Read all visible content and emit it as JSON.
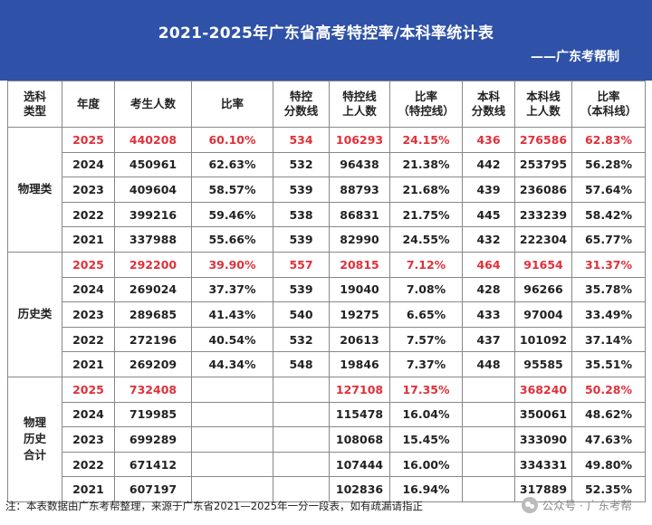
{
  "header": {
    "title": "2021-2025年广东省高考特控率/本科率统计表",
    "byline": "——广东考帮制"
  },
  "columns": [
    "选科\n类型",
    "年度",
    "考生人数",
    "比率",
    "特控\n分数线",
    "特控线\n上人数",
    "比率\n（特控线）",
    "本科\n分数线",
    "本科线\n上人数",
    "比率\n（本科线）"
  ],
  "groups": [
    {
      "label": "物理类",
      "rows": [
        [
          "2025",
          "440208",
          "60.10%",
          "534",
          "106293",
          "24.15%",
          "436",
          "276586",
          "62.83%"
        ],
        [
          "2024",
          "450961",
          "62.63%",
          "532",
          "96438",
          "21.38%",
          "442",
          "253795",
          "56.28%"
        ],
        [
          "2023",
          "409604",
          "58.57%",
          "539",
          "88793",
          "21.68%",
          "439",
          "236086",
          "57.64%"
        ],
        [
          "2022",
          "399216",
          "59.46%",
          "538",
          "86831",
          "21.75%",
          "445",
          "233239",
          "58.42%"
        ],
        [
          "2021",
          "337988",
          "55.66%",
          "539",
          "82990",
          "24.55%",
          "432",
          "222304",
          "65.77%"
        ]
      ]
    },
    {
      "label": "历史类",
      "rows": [
        [
          "2025",
          "292200",
          "39.90%",
          "557",
          "20815",
          "7.12%",
          "464",
          "91654",
          "31.37%"
        ],
        [
          "2024",
          "269024",
          "37.37%",
          "539",
          "19040",
          "7.08%",
          "428",
          "96266",
          "35.78%"
        ],
        [
          "2023",
          "289685",
          "41.43%",
          "540",
          "19275",
          "6.65%",
          "433",
          "97004",
          "33.49%"
        ],
        [
          "2022",
          "272196",
          "40.54%",
          "532",
          "20613",
          "7.57%",
          "437",
          "101092",
          "37.14%"
        ],
        [
          "2021",
          "269209",
          "44.34%",
          "548",
          "19846",
          "7.37%",
          "448",
          "95585",
          "35.51%"
        ]
      ]
    },
    {
      "label": "物理\n历史\n合计",
      "rows": [
        [
          "2025",
          "732408",
          "",
          "",
          "127108",
          "17.35%",
          "",
          "368240",
          "50.28%"
        ],
        [
          "2024",
          "719985",
          "",
          "",
          "115478",
          "16.04%",
          "",
          "350061",
          "48.62%"
        ],
        [
          "2023",
          "699289",
          "",
          "",
          "108068",
          "15.45%",
          "",
          "333090",
          "47.63%"
        ],
        [
          "2022",
          "671412",
          "",
          "",
          "107444",
          "16.00%",
          "",
          "334331",
          "49.80%"
        ],
        [
          "2021",
          "607197",
          "",
          "",
          "102836",
          "16.94%",
          "",
          "317889",
          "52.35%"
        ]
      ]
    }
  ],
  "note": "注：本表数据由广东考帮整理，来源于广东省2021—2025年一分一段表，如有疏漏请指正",
  "watermark": {
    "icon": "wechat-icon",
    "text": "公众号 · 广东考帮"
  },
  "colors": {
    "header_bg": "#2f52a8",
    "highlight": "#e0303a"
  }
}
